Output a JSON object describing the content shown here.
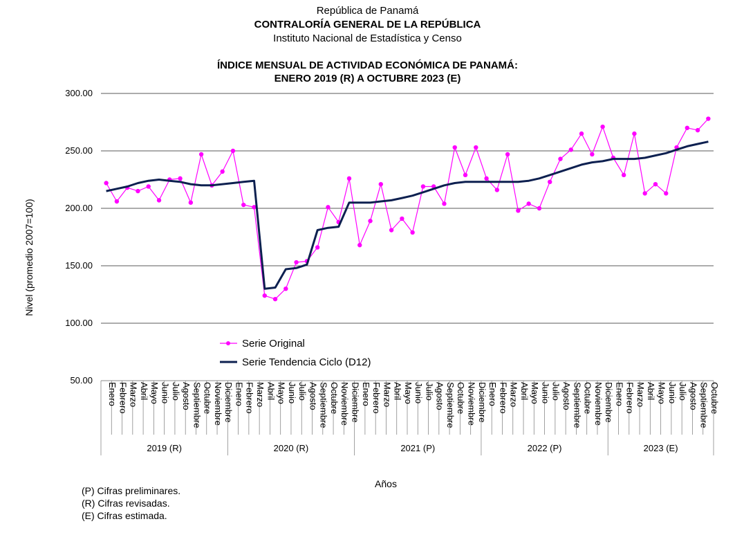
{
  "header": {
    "line1": "República de Panamá",
    "line2": "CONTRALORÍA GENERAL DE LA REPÚBLICA",
    "line3": "Instituto Nacional de Estadística y Censo"
  },
  "chart_data": {
    "type": "line",
    "title": "ÍNDICE MENSUAL DE ACTIVIDAD ECONÓMICA DE PANAMÁ:",
    "subtitle": "ENERO 2019 (R) A OCTUBRE 2023 (E)",
    "ylabel": "Nivel (promedio 2007=100)",
    "xlabel": "Años",
    "ylim": [
      50,
      300
    ],
    "yticks": [
      "50.00",
      "100.00",
      "150.00",
      "200.00",
      "250.00",
      "300.00"
    ],
    "ytick_values": [
      50,
      100,
      150,
      200,
      250,
      300
    ],
    "grid": true,
    "legend_position": "center-left",
    "months": [
      "Enero",
      "Febrero",
      "Marzo",
      "Abril",
      "Mayo",
      "Junio",
      "Julio",
      "Agosto",
      "Septiembre",
      "Octubre",
      "Noviembre",
      "Diciembre"
    ],
    "years": [
      {
        "label": "2019 (R)",
        "months": 12
      },
      {
        "label": "2020 (R)",
        "months": 12
      },
      {
        "label": "2021 (P)",
        "months": 12
      },
      {
        "label": "2022 (P)",
        "months": 12
      },
      {
        "label": "2023 (E)",
        "months": 10
      }
    ],
    "series": [
      {
        "name": "Serie Original",
        "color": "#ff00ff",
        "marker": "circle",
        "values": [
          222,
          206,
          218,
          215,
          219,
          207,
          225,
          226,
          205,
          247,
          220,
          232,
          250,
          203,
          201,
          124,
          121,
          130,
          153,
          154,
          166,
          201,
          188,
          226,
          168,
          189,
          221,
          181,
          191,
          179,
          219,
          219,
          204,
          253,
          229,
          253,
          226,
          216,
          247,
          198,
          204,
          200,
          223,
          243,
          251,
          265,
          247,
          271,
          244,
          229,
          265,
          213,
          221,
          213,
          253,
          270,
          268,
          278
        ]
      },
      {
        "name": "Serie Tendencia Ciclo (D12)",
        "color": "#0d2050",
        "marker": "none",
        "values": [
          215,
          217,
          219,
          222,
          224,
          225,
          224,
          223,
          221,
          220,
          220,
          221,
          222,
          223,
          224,
          130,
          131,
          147,
          148,
          151,
          181,
          183,
          184,
          205,
          205,
          205,
          206,
          207,
          209,
          211,
          214,
          217,
          220,
          222,
          223,
          223,
          223,
          223,
          223,
          223,
          224,
          226,
          229,
          232,
          235,
          238,
          240,
          241,
          243,
          243,
          243,
          244,
          246,
          248,
          251,
          254,
          256,
          258
        ]
      }
    ]
  },
  "notes": [
    "(P) Cifras preliminares.",
    "(R) Cifras revisadas.",
    "(E) Cifras estimada."
  ]
}
